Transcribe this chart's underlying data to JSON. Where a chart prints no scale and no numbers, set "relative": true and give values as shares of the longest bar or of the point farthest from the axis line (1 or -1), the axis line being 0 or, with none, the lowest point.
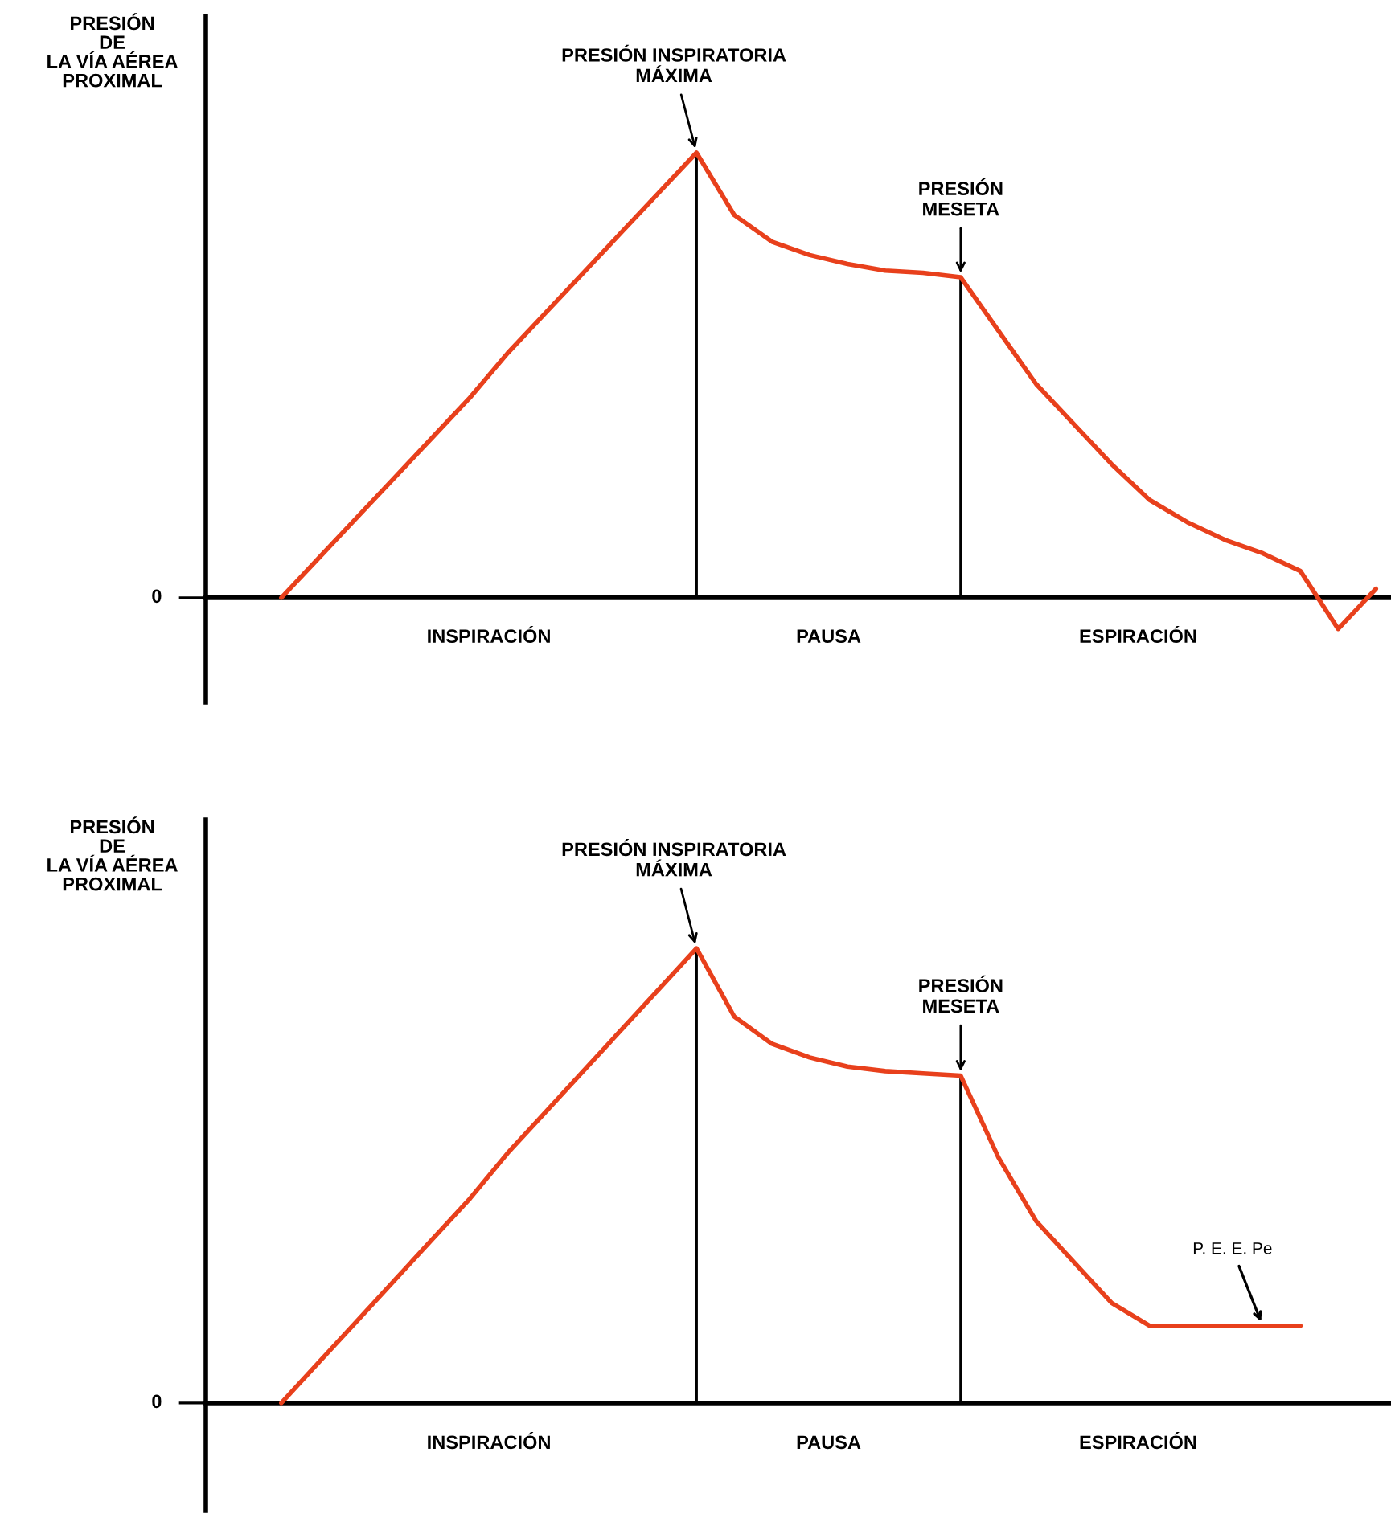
{
  "chart_data": [
    {
      "type": "line",
      "relative": true,
      "ylabel": "PRESIÓN\nDE\nLA VÍA AÉREA\nPROXIMAL",
      "categories": [
        null,
        null,
        null,
        null,
        null,
        null,
        null,
        null,
        null,
        null,
        null,
        null,
        null,
        null,
        null,
        null,
        null,
        null,
        null,
        null,
        null,
        null,
        null,
        null,
        null,
        null,
        null,
        null,
        null,
        null
      ],
      "annotations": [
        "0",
        "PRESIÓN INSPIRATORIA\nMÁXIMA",
        "PRESIÓN\nMESETA",
        "INSPIRACIÓN",
        "PAUSA",
        "ESPIRACIÓN"
      ],
      "series": [
        {
          "color": "#e8401c",
          "values": [
            0,
            0.09,
            0.18,
            0.27,
            0.36,
            0.45,
            0.55,
            0.64,
            0.73,
            0.82,
            0.91,
            1,
            0.86,
            0.8,
            0.77,
            0.75,
            0.735,
            0.73,
            0.72,
            0.6,
            0.48,
            0.39,
            0.3,
            0.22,
            0.17,
            0.13,
            0.1,
            0.06,
            -0.07,
            0.02
          ]
        }
      ]
    },
    {
      "type": "line",
      "relative": true,
      "ylabel": "PRESIÓN\nDE\nLA VÍA AÉREA\nPROXIMAL",
      "categories": [
        null,
        null,
        null,
        null,
        null,
        null,
        null,
        null,
        null,
        null,
        null,
        null,
        null,
        null,
        null,
        null,
        null,
        null,
        null,
        null,
        null,
        null,
        null,
        null,
        null,
        null,
        null,
        null
      ],
      "annotations": [
        "0",
        "PRESIÓN INSPIRATORIA\nMÁXIMA",
        "PRESIÓN\nMESETA",
        "INSPIRACIÓN",
        "PAUSA",
        "ESPIRACIÓN",
        "P. E. E. Pe"
      ],
      "series": [
        {
          "color": "#e8401c",
          "values": [
            0,
            0.09,
            0.18,
            0.27,
            0.36,
            0.45,
            0.55,
            0.64,
            0.73,
            0.82,
            0.91,
            1,
            0.85,
            0.79,
            0.76,
            0.74,
            0.73,
            0.725,
            0.72,
            0.54,
            0.4,
            0.31,
            0.22,
            0.17,
            0.17,
            0.17,
            0.17,
            0.17
          ]
        }
      ]
    }
  ]
}
